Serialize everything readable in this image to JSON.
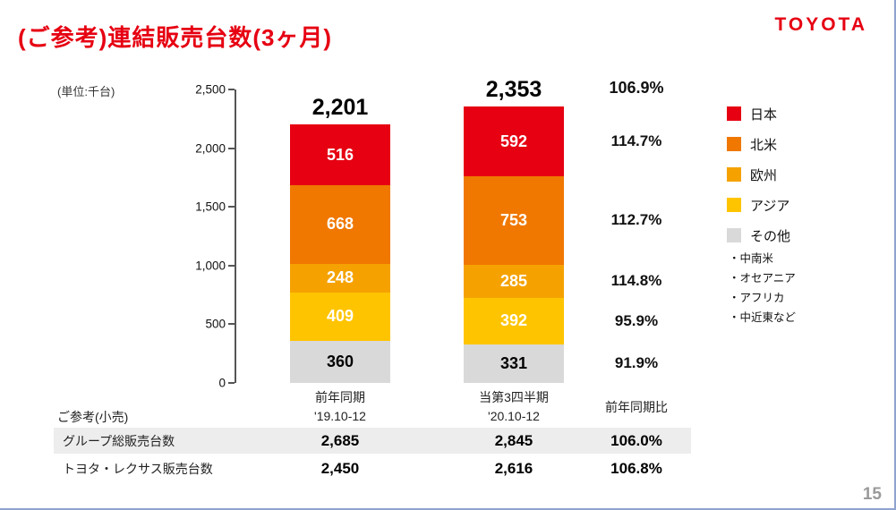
{
  "colors": {
    "brand_red": "#e60012",
    "highlight_row_bg": "#ededed"
  },
  "header": {
    "title": "(ご参考)連結販売台数(3ヶ月)",
    "logo": "TOYOTA"
  },
  "unit_label": "(単位:千台)",
  "chart_data": {
    "type": "stacked-bar",
    "unit": "千台",
    "ylim": [
      0,
      2500
    ],
    "yticks": [
      "2,500",
      "2,000",
      "1,500",
      "1,000",
      "500",
      "0"
    ],
    "segment_labels": [
      "日本",
      "北米",
      "欧州",
      "アジア",
      "その他"
    ],
    "segment_keys": [
      "japan",
      "north-america",
      "europe",
      "asia",
      "others"
    ],
    "segment_colors": [
      "#e60012",
      "#f07800",
      "#f5a200",
      "#ffc400",
      "#d9d9d9"
    ],
    "bars": [
      {
        "period_line1": "前年同期",
        "period_line2": "'19.10-12",
        "total": 2201,
        "total_label": "2,201",
        "values": [
          516,
          668,
          248,
          409,
          360
        ]
      },
      {
        "period_line1": "当第3四半期",
        "period_line2": "'20.10-12",
        "total": 2353,
        "total_label": "2,353",
        "values": [
          592,
          753,
          285,
          392,
          331
        ]
      }
    ],
    "yoy": {
      "header": "前年同期比",
      "total": "106.9%",
      "segments": [
        "114.7%",
        "112.7%",
        "114.8%",
        "95.9%",
        "91.9%"
      ]
    }
  },
  "legend": {
    "items": [
      {
        "label": "日本",
        "color": "#e60012"
      },
      {
        "label": "北米",
        "color": "#f07800"
      },
      {
        "label": "欧州",
        "color": "#f5a200"
      },
      {
        "label": "アジア",
        "color": "#ffc400"
      },
      {
        "label": "その他",
        "color": "#d9d9d9"
      }
    ],
    "notes": [
      "・中南米",
      "・オセアニア",
      "・アフリカ",
      "・中近東など"
    ]
  },
  "retail_table": {
    "caption": "ご参考(小売)",
    "rows": [
      {
        "label": "グループ総販売台数",
        "prev": "2,685",
        "current": "2,845",
        "yoy": "106.0%",
        "highlight": true
      },
      {
        "label": "トヨタ・レクサス販売台数",
        "prev": "2,450",
        "current": "2,616",
        "yoy": "106.8%",
        "highlight": false
      }
    ]
  },
  "page_number": "15"
}
